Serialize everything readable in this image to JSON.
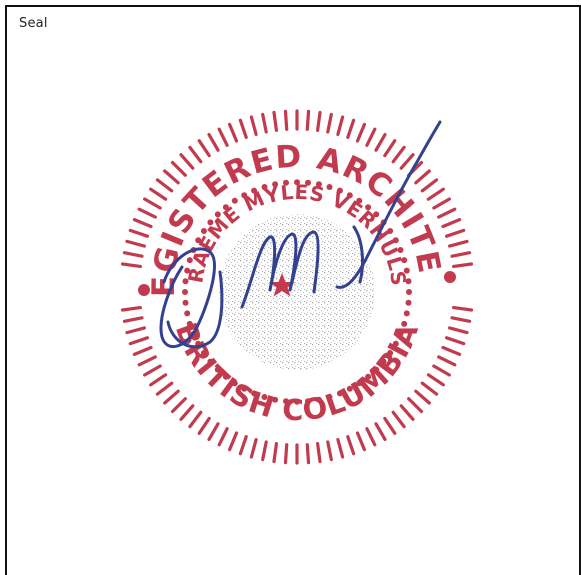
{
  "section": {
    "label": "Seal"
  },
  "seal": {
    "top_text": "REGISTERED ARCHITECT",
    "name_text": "GRAEME MYLES VERHULST",
    "bottom_text": "BRITISH COLUMBIA",
    "ink_color": "#c23a4e",
    "signature_color": "#34418f"
  }
}
